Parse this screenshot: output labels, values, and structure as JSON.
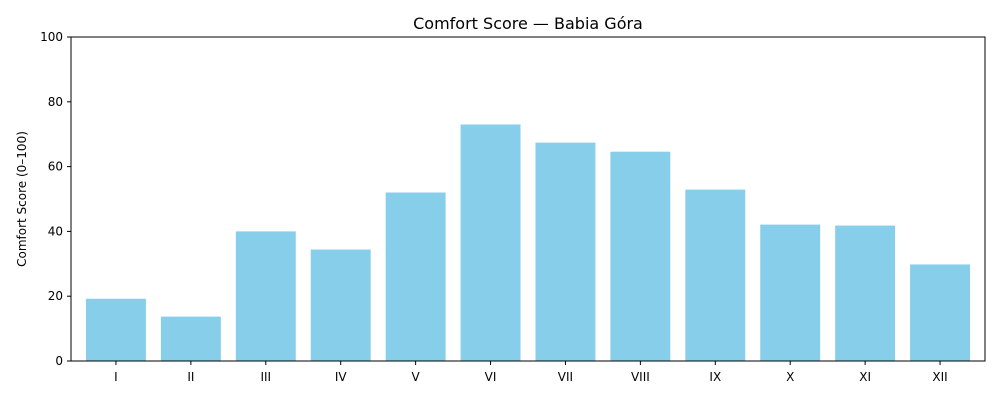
{
  "chart_data": {
    "type": "bar",
    "title": "Comfort Score — Babia Góra",
    "xlabel": "",
    "ylabel": "Comfort Score (0–100)",
    "categories": [
      "I",
      "II",
      "III",
      "IV",
      "V",
      "VI",
      "VII",
      "VIII",
      "IX",
      "X",
      "XI",
      "XII"
    ],
    "values": [
      19.2,
      13.7,
      40.0,
      34.4,
      52.0,
      73.0,
      67.4,
      64.6,
      52.9,
      42.1,
      41.8,
      29.8
    ],
    "ylim": [
      0,
      100
    ],
    "yticks": [
      0,
      20,
      40,
      60,
      80,
      100
    ],
    "bar_color": "#87ceeb",
    "grid": false,
    "legend": false
  }
}
